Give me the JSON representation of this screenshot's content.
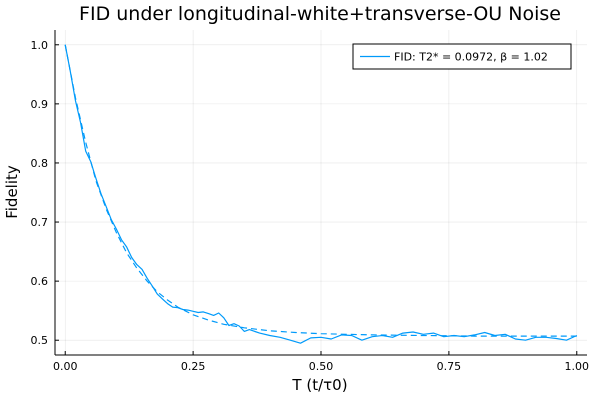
{
  "chart_data": {
    "type": "line",
    "title": "FID under longitudinal-white+transverse-OU Noise",
    "xlabel": "T (t/τ0)",
    "ylabel": "Fidelity",
    "xlim": [
      -0.02,
      1.02
    ],
    "ylim": [
      0.475,
      1.025
    ],
    "xticks": [
      0.0,
      0.25,
      0.5,
      0.75,
      1.0
    ],
    "xtick_labels": [
      "0.00",
      "0.25",
      "0.50",
      "0.75",
      "1.00"
    ],
    "yticks": [
      0.5,
      0.6,
      0.7,
      0.8,
      0.9,
      1.0
    ],
    "ytick_labels": [
      "0.5",
      "0.6",
      "0.7",
      "0.8",
      "0.9",
      "1.0"
    ],
    "grid": true,
    "legend_position": "top-right",
    "colors": {
      "series": "#009AFA",
      "axis": "#000000"
    },
    "series": [
      {
        "name": "FID: T2* = 0.0972, β = 1.02",
        "style": "solid",
        "x": [
          0.0,
          0.01,
          0.02,
          0.03,
          0.04,
          0.05,
          0.06,
          0.07,
          0.08,
          0.09,
          0.1,
          0.11,
          0.12,
          0.13,
          0.14,
          0.15,
          0.16,
          0.17,
          0.18,
          0.19,
          0.2,
          0.21,
          0.22,
          0.23,
          0.24,
          0.25,
          0.26,
          0.27,
          0.28,
          0.29,
          0.3,
          0.31,
          0.32,
          0.33,
          0.34,
          0.35,
          0.36,
          0.38,
          0.4,
          0.42,
          0.44,
          0.46,
          0.48,
          0.5,
          0.52,
          0.54,
          0.56,
          0.58,
          0.6,
          0.62,
          0.64,
          0.66,
          0.68,
          0.7,
          0.72,
          0.74,
          0.76,
          0.78,
          0.8,
          0.82,
          0.84,
          0.86,
          0.88,
          0.9,
          0.92,
          0.94,
          0.96,
          0.98,
          1.0
        ],
        "y": [
          1.0,
          0.955,
          0.905,
          0.868,
          0.82,
          0.802,
          0.774,
          0.748,
          0.726,
          0.704,
          0.688,
          0.67,
          0.658,
          0.64,
          0.628,
          0.62,
          0.605,
          0.592,
          0.578,
          0.57,
          0.562,
          0.556,
          0.555,
          0.552,
          0.551,
          0.549,
          0.547,
          0.548,
          0.545,
          0.542,
          0.546,
          0.538,
          0.525,
          0.528,
          0.524,
          0.515,
          0.518,
          0.512,
          0.508,
          0.505,
          0.5,
          0.495,
          0.504,
          0.505,
          0.502,
          0.509,
          0.508,
          0.5,
          0.506,
          0.508,
          0.505,
          0.512,
          0.514,
          0.51,
          0.512,
          0.506,
          0.508,
          0.506,
          0.509,
          0.513,
          0.508,
          0.51,
          0.502,
          0.5,
          0.505,
          0.505,
          0.503,
          0.5,
          0.508
        ]
      },
      {
        "name": "",
        "style": "dashed",
        "x": [
          0.0,
          0.02,
          0.04,
          0.06,
          0.08,
          0.1,
          0.12,
          0.14,
          0.16,
          0.18,
          0.2,
          0.22,
          0.25,
          0.28,
          0.31,
          0.35,
          0.4,
          0.45,
          0.5,
          0.55,
          0.6,
          0.7,
          0.8,
          0.9,
          1.0
        ],
        "y": [
          1.0,
          0.91,
          0.835,
          0.77,
          0.722,
          0.682,
          0.648,
          0.622,
          0.6,
          0.582,
          0.568,
          0.556,
          0.543,
          0.534,
          0.527,
          0.521,
          0.516,
          0.513,
          0.511,
          0.51,
          0.509,
          0.508,
          0.507,
          0.507,
          0.507
        ]
      }
    ]
  }
}
